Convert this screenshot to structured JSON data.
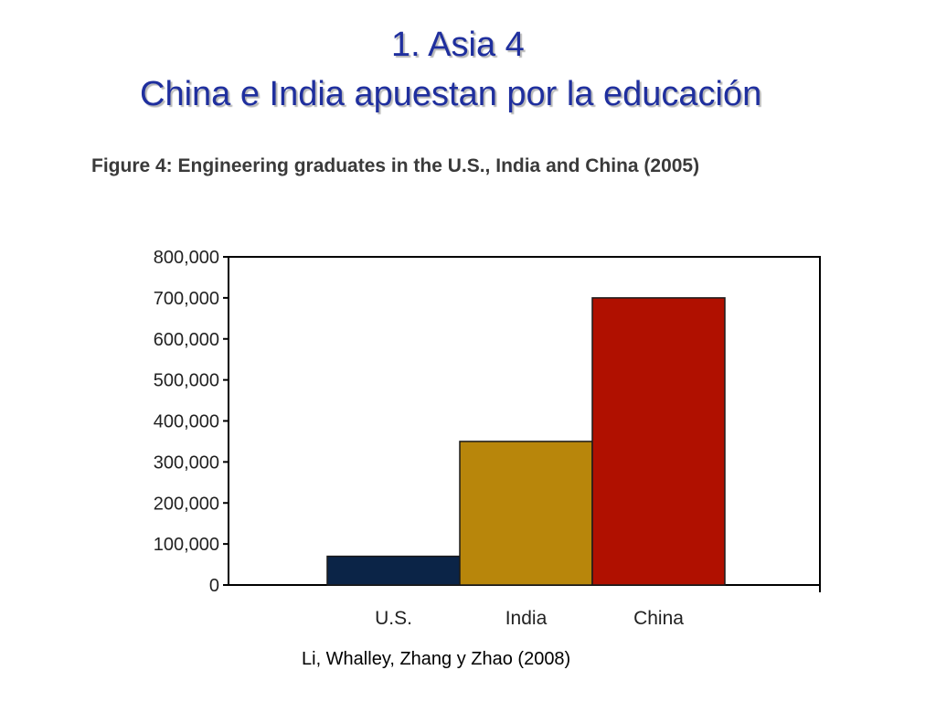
{
  "slide": {
    "title_line_1": "1. Asia 4",
    "title_line_2": "China e India apuestan por la educación",
    "title_color": "#1f2f9e"
  },
  "chart_data": {
    "type": "bar",
    "title": "Figure 4: Engineering graduates in the U.S., India and China (2005)",
    "xlabel": "",
    "ylabel": "",
    "categories": [
      "U.S.",
      "India",
      "China"
    ],
    "values": [
      70000,
      350000,
      700000
    ],
    "colors": [
      "#0b2447",
      "#b8860b",
      "#b01000"
    ],
    "ylim": [
      0,
      800000
    ],
    "yticks": [
      0,
      100000,
      200000,
      300000,
      400000,
      500000,
      600000,
      700000,
      800000
    ],
    "ytick_labels": [
      "0",
      "100,000",
      "200,000",
      "300,000",
      "400,000",
      "500,000",
      "600,000",
      "700,000",
      "800,000"
    ],
    "grid": false,
    "legend": "none"
  },
  "source": "Li, Whalley, Zhang y Zhao (2008)"
}
